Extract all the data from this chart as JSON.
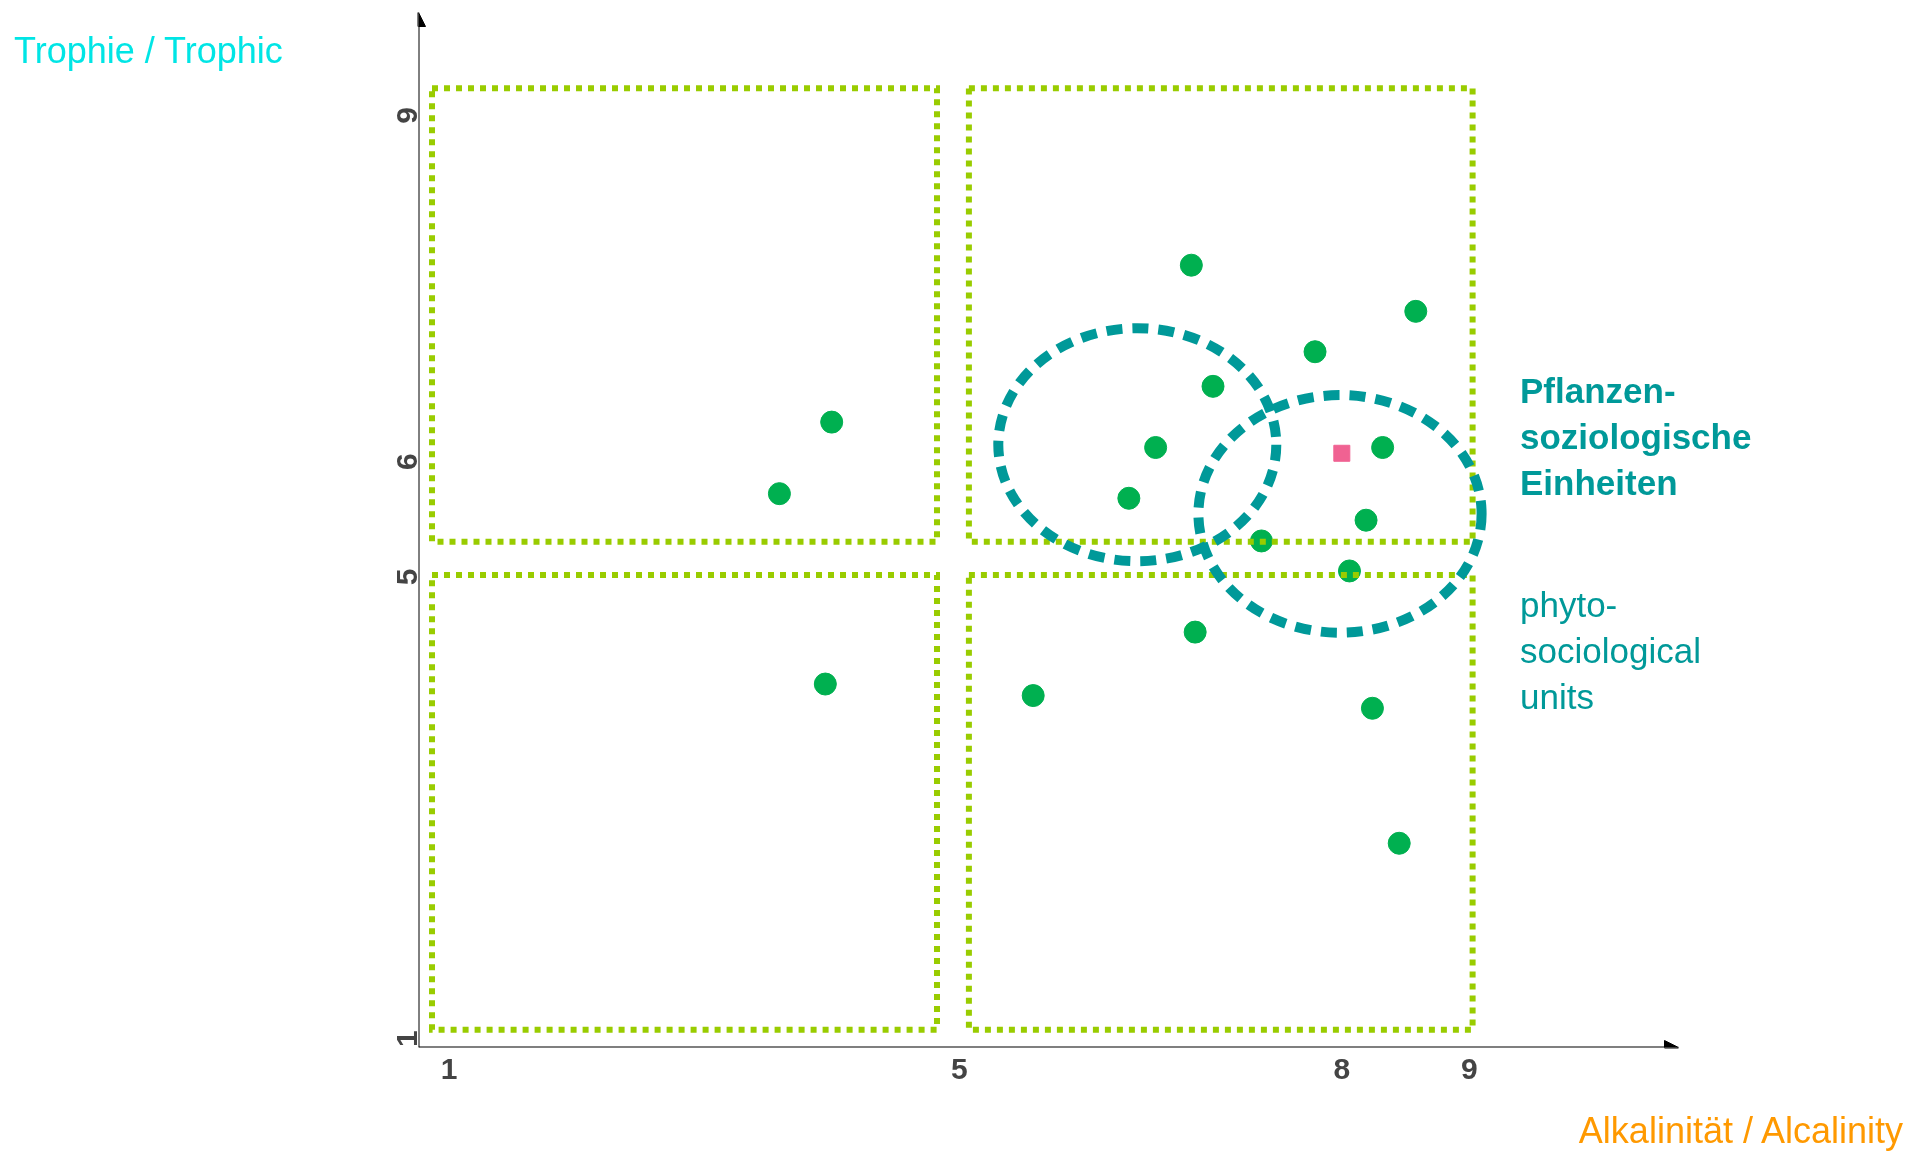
{
  "chart_data": {
    "type": "scatter",
    "xlabel": "Alkalinität / Alcalinity",
    "ylabel": "Trophie / Trophic",
    "xlim": [
      0.76,
      10.64
    ],
    "ylim": [
      0.85,
      9.82
    ],
    "xticks": [
      1,
      5,
      8,
      9
    ],
    "yticks": [
      1,
      5,
      6,
      9
    ],
    "grid": false,
    "annotations": [
      "Pflanzen-\nsoziologische\nEinheiten",
      "phyto-\nsociological\nunits"
    ],
    "series": [
      {
        "marker": "circle",
        "color": "#00b050",
        "x": [
          4.0,
          3.59,
          3.95,
          5.58,
          6.33,
          6.54,
          6.82,
          6.99,
          7.79,
          8.58,
          8.32,
          8.19,
          7.37,
          8.06,
          6.85,
          8.24,
          8.45
        ],
        "values": [
          6.27,
          5.65,
          4.0,
          3.9,
          5.61,
          6.05,
          7.63,
          6.58,
          6.88,
          7.23,
          6.05,
          5.42,
          5.24,
          4.98,
          4.45,
          3.79,
          2.62
        ]
      },
      {
        "marker": "square",
        "color": "#f06292",
        "x": [
          8
        ],
        "values": [
          6
        ]
      }
    ]
  }
}
